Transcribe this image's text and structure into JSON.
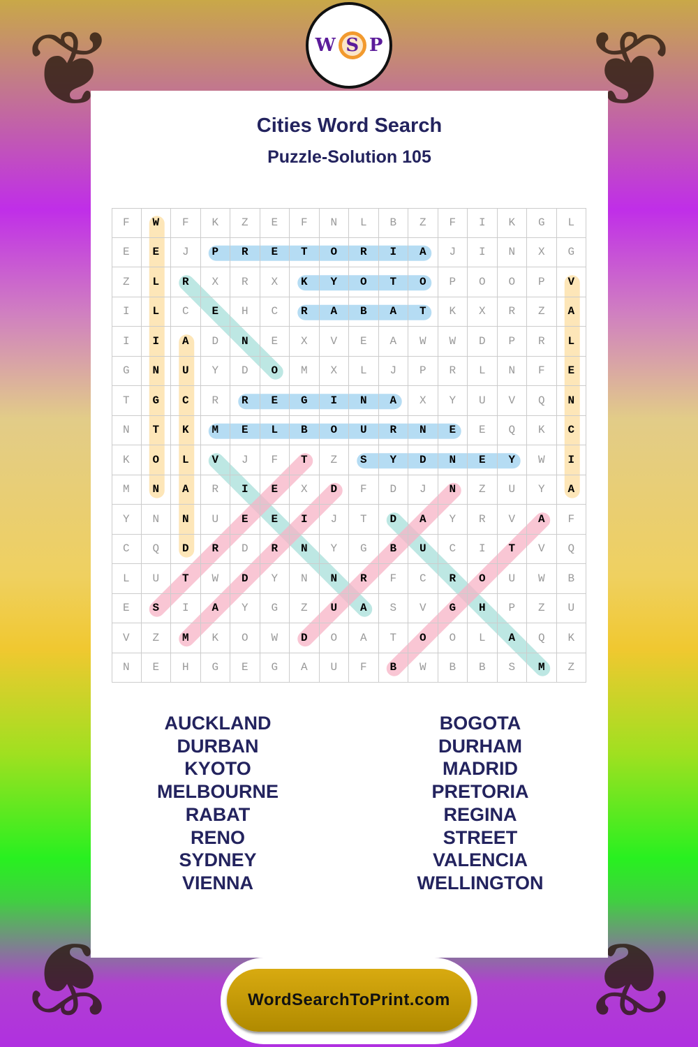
{
  "header": {
    "title": "Cities Word Search",
    "subtitle": "Puzzle-Solution 105",
    "logo_text": "WSP"
  },
  "grid": [
    "FWFKZEFNLBZFIKGL",
    "EEJPRETORIAJINXG",
    "ZLRXRXKYOTOPOOPV",
    "ILCEHCRABATKXRZA",
    "IIADNEXVEAWWDPRL",
    "GNUYDOMXLJPRLNFE",
    "TGCRREGINAXYUVQN",
    "NTKMELBOURNEEQKC",
    "KOLVJFTZSYDNEYWI",
    "MNARIEXDFDJNZUYA",
    "YNNUEEIJTDAYRVAF",
    "CQDRDRNYGBUCITVQ",
    "LUTWDYNNRFCROUWB",
    "ESIAYGZUASVGHPZU",
    "VZMKOWDOATOOLAQK",
    "NEHGEGAUFBWBBSMZ"
  ],
  "solutions": [
    {
      "word": "WELLINGTON",
      "from": [
        0,
        1
      ],
      "to": [
        9,
        1
      ],
      "color": "#fde6b8"
    },
    {
      "word": "AUCKLAND",
      "from": [
        4,
        2
      ],
      "to": [
        11,
        2
      ],
      "color": "#fde6b8"
    },
    {
      "word": "VALENCIA",
      "from": [
        2,
        15
      ],
      "to": [
        9,
        15
      ],
      "color": "#fde6b8"
    },
    {
      "word": "PRETORIA",
      "from": [
        1,
        3
      ],
      "to": [
        1,
        10
      ],
      "color": "#b5dcf3"
    },
    {
      "word": "KYOTO",
      "from": [
        2,
        6
      ],
      "to": [
        2,
        10
      ],
      "color": "#b5dcf3"
    },
    {
      "word": "RABAT",
      "from": [
        3,
        6
      ],
      "to": [
        3,
        10
      ],
      "color": "#b5dcf3"
    },
    {
      "word": "REGINA",
      "from": [
        6,
        4
      ],
      "to": [
        6,
        9
      ],
      "color": "#b5dcf3"
    },
    {
      "word": "MELBOURNE",
      "from": [
        7,
        3
      ],
      "to": [
        7,
        11
      ],
      "color": "#b5dcf3"
    },
    {
      "word": "SYDNEY",
      "from": [
        8,
        8
      ],
      "to": [
        8,
        13
      ],
      "color": "#b5dcf3"
    },
    {
      "word": "RENO",
      "from": [
        2,
        2
      ],
      "to": [
        5,
        5
      ],
      "color": "#a8dfda"
    },
    {
      "word": "VIENNA",
      "from": [
        8,
        3
      ],
      "to": [
        13,
        8
      ],
      "color": "#a8dfda"
    },
    {
      "word": "DURHAM",
      "from": [
        10,
        9
      ],
      "to": [
        15,
        14
      ],
      "color": "#a8dfda"
    },
    {
      "word": "STREET",
      "from": [
        13,
        1
      ],
      "to": [
        8,
        6
      ],
      "color": "#f7b3c6"
    },
    {
      "word": "MADRID",
      "from": [
        14,
        2
      ],
      "to": [
        9,
        7
      ],
      "color": "#f7b3c6"
    },
    {
      "word": "DURBAN",
      "from": [
        14,
        6
      ],
      "to": [
        9,
        11
      ],
      "color": "#f7b3c6"
    },
    {
      "word": "BOGOTA",
      "from": [
        15,
        9
      ],
      "to": [
        10,
        14
      ],
      "color": "#f7b3c6"
    }
  ],
  "word_list": {
    "left": [
      "AUCKLAND",
      "DURBAN",
      "KYOTO",
      "MELBOURNE",
      "RABAT",
      "RENO",
      "SYDNEY",
      "VIENNA"
    ],
    "right": [
      "BOGOTA",
      "DURHAM",
      "MADRID",
      "PRETORIA",
      "REGINA",
      "STREET",
      "VALENCIA",
      "WELLINGTON"
    ]
  },
  "footer": {
    "site": "WordSearchToPrint.com"
  }
}
